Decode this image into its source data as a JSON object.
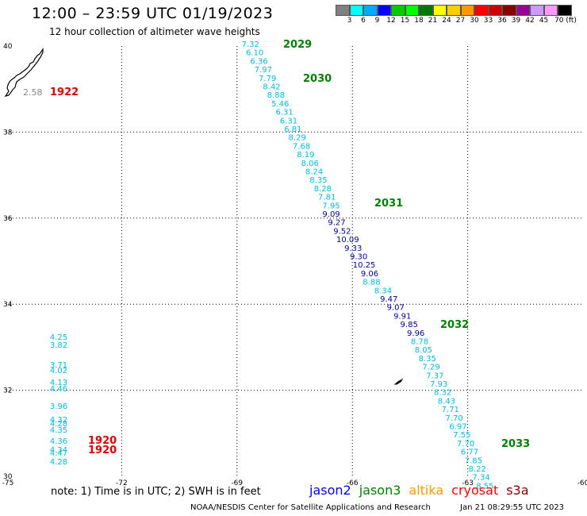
{
  "title": "12:00 – 23:59 UTC 01/19/2023",
  "subtitle": "12 hour collection of altimeter wave heights",
  "colorbar": {
    "colors": [
      "#808080",
      "#00ffff",
      "#00aaff",
      "#0000ff",
      "#00cc00",
      "#00ff00",
      "#007700",
      "#ffff00",
      "#ffcc00",
      "#ff9900",
      "#ff0000",
      "#cc0000",
      "#880000",
      "#990099",
      "#cc99ff",
      "#ff99ff",
      "#000000"
    ],
    "labels": [
      "3",
      "6",
      "9",
      "12",
      "15",
      "18",
      "21",
      "24",
      "27",
      "30",
      "33",
      "36",
      "39",
      "42",
      "45",
      "70 (ft)"
    ]
  },
  "note": "note:  1) Time is in UTC;  2) SWH is in feet",
  "satellites": [
    {
      "name": "jason2",
      "color": "#0000ff"
    },
    {
      "name": "jason3",
      "color": "#008000"
    },
    {
      "name": "altika",
      "color": "#ff9900"
    },
    {
      "name": "cryosat",
      "color": "#ff0000"
    },
    {
      "name": "s3a",
      "color": "#880000"
    }
  ],
  "footer_left": "NOAA/NESDIS Center for Satellite Applications and Research",
  "footer_right": "Jan 21 08:29:55 UTC 2023",
  "map_extent": {
    "lon": [
      -75,
      -60
    ],
    "lat": [
      30,
      40
    ]
  },
  "lon_ticks": [
    "-75",
    "-72",
    "-69",
    "-66",
    "-63",
    "-60"
  ],
  "lat_ticks": [
    "30",
    "32",
    "34",
    "36",
    "38",
    "40"
  ],
  "track_cyan_1": {
    "color": "#00bbdd",
    "lon_start": -68.65,
    "lon_end": -66.55,
    "values": [
      "7.32",
      "6.10",
      "6.36",
      "7.97",
      "7.79",
      "8.42",
      "8.88",
      "5.46",
      "6.31",
      "6.31",
      "6.81",
      "8.29",
      "7.68",
      "8.19",
      "8.06",
      "8.24",
      "8.35",
      "8.28",
      "7.81",
      "7.95"
    ]
  },
  "track_navy_1": {
    "color": "#000099",
    "lon_start": -66.55,
    "lon_end": -65.55,
    "values": [
      "9.09",
      "9.27",
      "9.52",
      "10.09",
      "9.33",
      "9.30",
      "10.25",
      "9.06"
    ]
  },
  "track_cyan_2": {
    "color": "#00bbdd",
    "lon_start": -65.5,
    "lon_end": -65.2,
    "values": [
      "8.88",
      "8.34"
    ]
  },
  "track_navy_2": {
    "color": "#000099",
    "lon_start": -65.05,
    "lon_end": -64.35,
    "values": [
      "9.47",
      "9.07",
      "9.91",
      "9.85",
      "9.96"
    ]
  },
  "track_cyan_3": {
    "color": "#00bbdd",
    "lon_start": -64.25,
    "lon_end": -62.55,
    "values": [
      "8.78",
      "8.05",
      "8.35",
      "7.29",
      "7.37",
      "7.93",
      "8.32",
      "8.43",
      "7.71",
      "7.70",
      "6.97",
      "7.55",
      "7.70",
      "6.77",
      "7.85",
      "8.22",
      "7.34",
      "8.55"
    ]
  },
  "track_left_cyan": {
    "color": "#00bbdd",
    "values": [
      "4.25",
      "3.82",
      "3.71",
      "4.02",
      "4.13",
      "4.46",
      "3.96",
      "4.32",
      "4.28",
      "4.35",
      "4.36",
      "4.34",
      "4.47",
      "4.28"
    ]
  },
  "label_2558": {
    "value": "2.58",
    "color": "#888888"
  },
  "pass_labels": [
    {
      "text": "2029",
      "color": "#008000"
    },
    {
      "text": "2030",
      "color": "#008000"
    },
    {
      "text": "2031",
      "color": "#008000"
    },
    {
      "text": "2032",
      "color": "#008000"
    },
    {
      "text": "2033",
      "color": "#008000"
    },
    {
      "text": "1922",
      "color": "#dd0000"
    },
    {
      "text": "1920",
      "color": "#dd0000"
    },
    {
      "text": "1920",
      "color": "#dd0000"
    }
  ]
}
